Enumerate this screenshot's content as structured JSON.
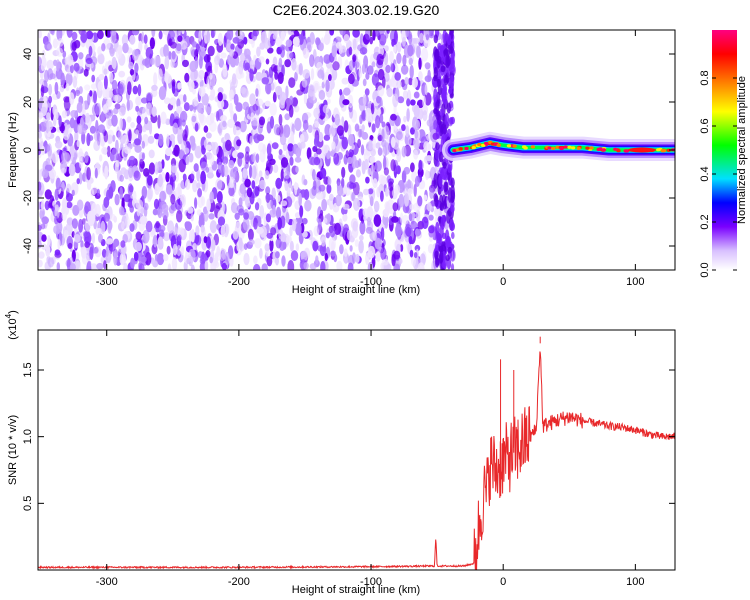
{
  "title": "C2E6.2024.303.02.19.G20",
  "chart_data": [
    {
      "type": "heatmap",
      "xlabel": "Height of straight line (km)",
      "ylabel": "Frequency (Hz)",
      "xlim": [
        -352,
        130
      ],
      "ylim": [
        -50,
        50
      ],
      "x_ticks": [
        -300,
        -200,
        -100,
        0,
        100
      ],
      "y_ticks": [
        -40,
        -20,
        0,
        20,
        40
      ],
      "noise_region_x": [
        -352,
        -38
      ],
      "signal_start_x": -38,
      "signal_track": [
        {
          "x": -38,
          "y": 0
        },
        {
          "x": -25,
          "y": 1
        },
        {
          "x": -10,
          "y": 3
        },
        {
          "x": 0,
          "y": 2
        },
        {
          "x": 15,
          "y": 1
        },
        {
          "x": 30,
          "y": 1
        },
        {
          "x": 45,
          "y": 1
        },
        {
          "x": 60,
          "y": 1
        },
        {
          "x": 80,
          "y": 0
        },
        {
          "x": 100,
          "y": 0
        },
        {
          "x": 130,
          "y": 0
        }
      ],
      "colorbar": {
        "label": "Normalized spectral amplitude",
        "range": [
          0,
          1
        ],
        "ticks": [
          "0.0",
          "0.2",
          "0.4",
          "0.6",
          "0.8"
        ],
        "colors": [
          "#ffffff",
          "#d8c0ff",
          "#7a00ff",
          "#0000ff",
          "#00e0ff",
          "#00ff00",
          "#ffff00",
          "#ff8000",
          "#ff0000",
          "#ff0080"
        ]
      }
    },
    {
      "type": "line",
      "xlabel": "Height of straight line (km)",
      "ylabel": "SNR (10 * v/v)",
      "y_multiplier": "(x10",
      "y_multiplier_exp": "4",
      "y_multiplier_close": ")",
      "xlim": [
        -352,
        130
      ],
      "ylim": [
        0,
        1.8
      ],
      "x_ticks": [
        -300,
        -200,
        -100,
        0,
        100
      ],
      "y_ticks": [
        "0.5",
        "1.0",
        "1.5"
      ],
      "series": [
        {
          "color": "#e8282a",
          "x": [
            -352,
            -200,
            -100,
            -52,
            -51,
            -50,
            -30,
            -22,
            -18,
            -15,
            -12,
            -10,
            -5,
            0,
            5,
            10,
            15,
            20,
            25,
            28,
            30,
            35,
            40,
            50,
            60,
            70,
            80,
            90,
            100,
            110,
            120,
            130
          ],
          "y": [
            0.02,
            0.02,
            0.025,
            0.03,
            0.25,
            0.03,
            0.03,
            0.05,
            0.35,
            0.55,
            0.6,
            0.8,
            0.75,
            0.82,
            0.85,
            0.9,
            0.95,
            1.0,
            1.05,
            1.7,
            1.08,
            1.1,
            1.12,
            1.15,
            1.12,
            1.1,
            1.08,
            1.07,
            1.05,
            1.02,
            1.0,
            1.0
          ]
        }
      ]
    }
  ]
}
